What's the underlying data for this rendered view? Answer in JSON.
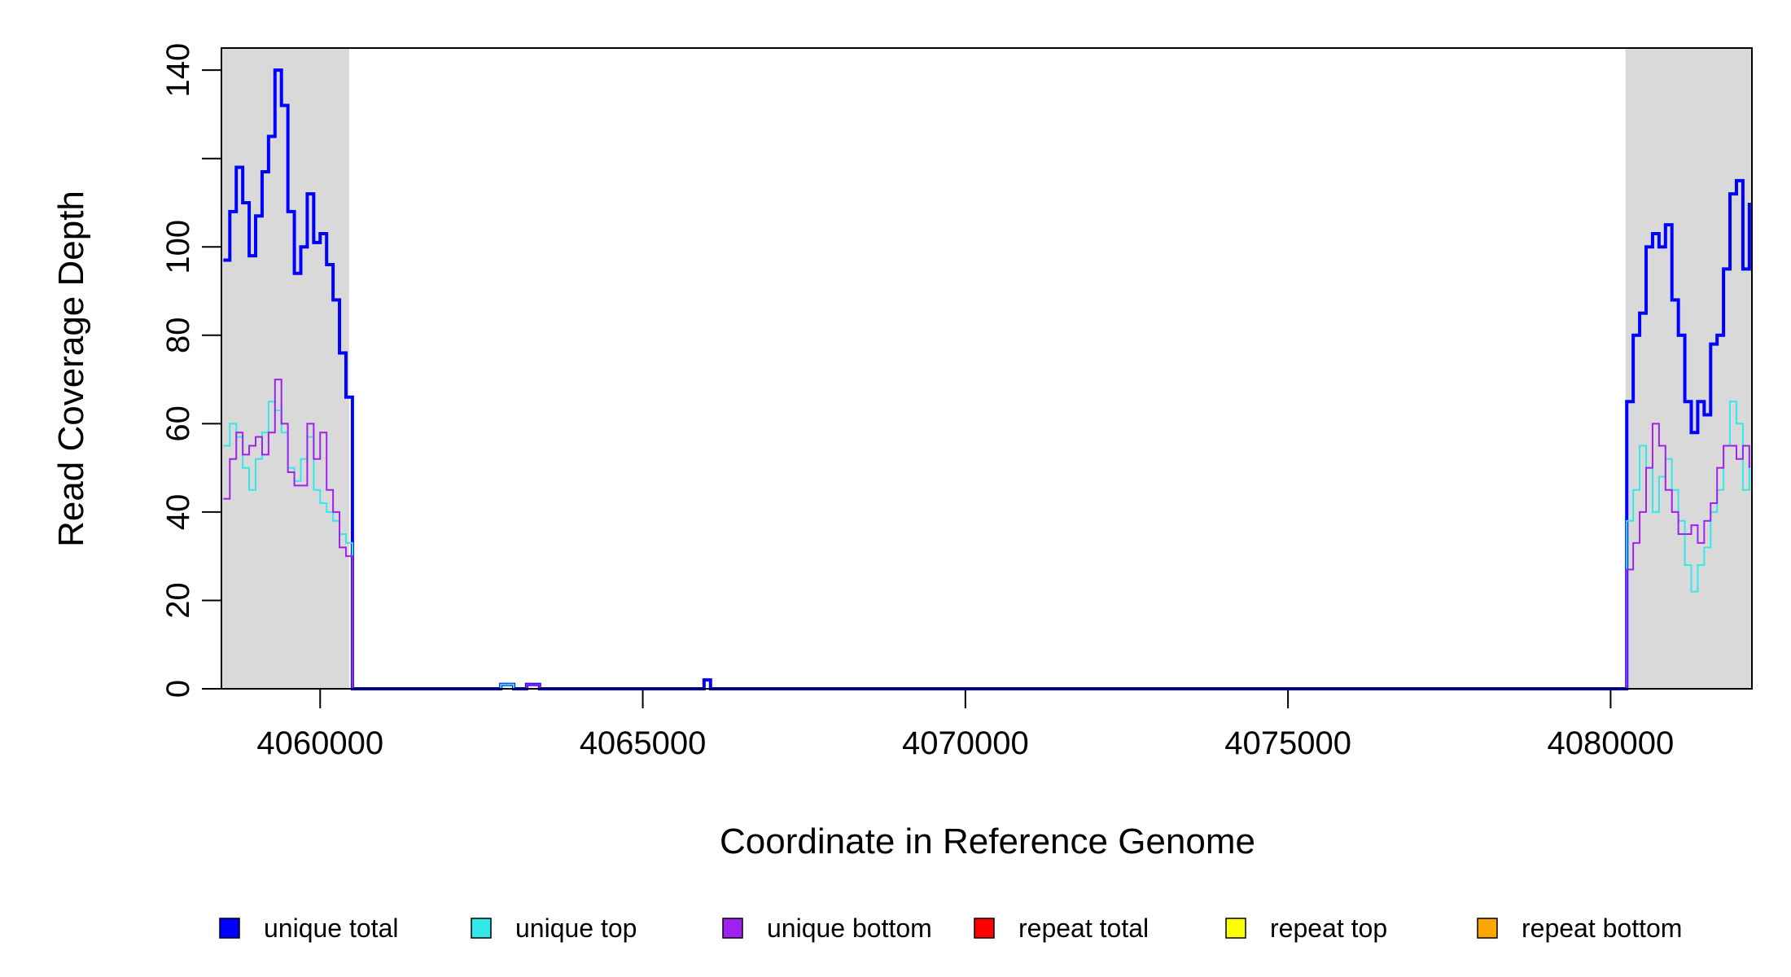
{
  "chart_data": {
    "type": "step-line",
    "x_label": "Coordinate in Reference Genome",
    "y_label": "Read Coverage Depth",
    "xlim": [
      4058470,
      4082190
    ],
    "ylim": [
      0,
      145
    ],
    "xticks": [
      4060000,
      4065000,
      4070000,
      4075000,
      4080000
    ],
    "yticks": [
      0,
      20,
      40,
      60,
      80,
      100,
      {
        "value": 120,
        "label": null
      },
      140
    ],
    "shaded_regions": [
      [
        4058470,
        4060450
      ],
      [
        4080230,
        4082190
      ]
    ],
    "shade_color": "#d9d9d9",
    "x": [
      4058500,
      4058600,
      4058700,
      4058800,
      4058900,
      4059000,
      4059100,
      4059200,
      4059300,
      4059400,
      4059500,
      4059600,
      4059700,
      4059800,
      4059900,
      4060000,
      4060100,
      4060200,
      4060300,
      4060400,
      4060500,
      4062800,
      4063000,
      4063200,
      4063400,
      4065950,
      4066050,
      4080200,
      4080250,
      4080350,
      4080450,
      4080550,
      4080650,
      4080750,
      4080850,
      4080950,
      4081050,
      4081150,
      4081250,
      4081350,
      4081450,
      4081550,
      4081650,
      4081750,
      4081850,
      4081950,
      4082050,
      4082150
    ],
    "series": [
      {
        "name": "repeat total",
        "color": "#ff0000",
        "width": 2,
        "values": [
          0,
          0,
          0,
          0,
          0,
          0,
          0,
          0,
          0,
          0,
          0,
          0,
          0,
          0,
          0,
          0,
          0,
          0,
          0,
          0,
          0,
          0,
          0,
          0,
          0,
          0,
          0,
          0,
          0,
          0,
          0,
          0,
          0,
          0,
          0,
          0,
          0,
          0,
          0,
          0,
          0,
          0,
          0,
          0,
          0,
          0,
          0,
          0
        ]
      },
      {
        "name": "repeat top",
        "color": "#ffff00",
        "width": 2,
        "values": [
          0,
          0,
          0,
          0,
          0,
          0,
          0,
          0,
          0,
          0,
          0,
          0,
          0,
          0,
          0,
          0,
          0,
          0,
          0,
          0,
          0,
          0,
          0,
          0,
          0,
          0,
          0,
          0,
          0,
          0,
          0,
          0,
          0,
          0,
          0,
          0,
          0,
          0,
          0,
          0,
          0,
          0,
          0,
          0,
          0,
          0,
          0,
          0
        ]
      },
      {
        "name": "repeat bottom",
        "color": "#ffa500",
        "width": 2,
        "values": [
          0,
          0,
          0,
          0,
          0,
          0,
          0,
          0,
          0,
          0,
          0,
          0,
          0,
          0,
          0,
          0,
          0,
          0,
          0,
          0,
          0,
          0,
          0,
          0,
          0,
          0,
          0,
          0,
          0,
          0,
          0,
          0,
          0,
          0,
          0,
          0,
          0,
          0,
          0,
          0,
          0,
          0,
          0,
          0,
          0,
          0,
          0,
          0
        ]
      },
      {
        "name": "unique total",
        "color": "#0000ff",
        "width": 4,
        "values": [
          97,
          108,
          118,
          110,
          98,
          107,
          117,
          125,
          140,
          132,
          108,
          94,
          100,
          112,
          101,
          103,
          96,
          88,
          76,
          66,
          0,
          1,
          0,
          1,
          0,
          2,
          0,
          0,
          65,
          80,
          85,
          100,
          103,
          100,
          105,
          88,
          80,
          65,
          58,
          65,
          62,
          78,
          80,
          95,
          112,
          115,
          95,
          110
        ]
      },
      {
        "name": "unique top",
        "color": "#33e8e8",
        "width": 2,
        "values": [
          55,
          60,
          57,
          50,
          45,
          52,
          58,
          65,
          63,
          58,
          50,
          47,
          52,
          57,
          45,
          42,
          40,
          38,
          35,
          33,
          0,
          1,
          0,
          0,
          0,
          0,
          0,
          0,
          38,
          45,
          55,
          50,
          40,
          48,
          52,
          45,
          38,
          28,
          22,
          28,
          32,
          40,
          45,
          55,
          65,
          60,
          45,
          55
        ]
      },
      {
        "name": "unique bottom",
        "color": "#a020f0",
        "width": 2,
        "values": [
          43,
          52,
          58,
          53,
          55,
          57,
          53,
          58,
          70,
          60,
          49,
          46,
          46,
          60,
          52,
          58,
          45,
          40,
          32,
          30,
          0,
          0,
          0,
          1,
          0,
          0,
          0,
          0,
          27,
          33,
          40,
          50,
          60,
          55,
          45,
          40,
          35,
          35,
          37,
          33,
          38,
          42,
          50,
          55,
          55,
          52,
          55,
          50
        ]
      }
    ],
    "legend_order": [
      3,
      4,
      5,
      0,
      1,
      2
    ]
  }
}
